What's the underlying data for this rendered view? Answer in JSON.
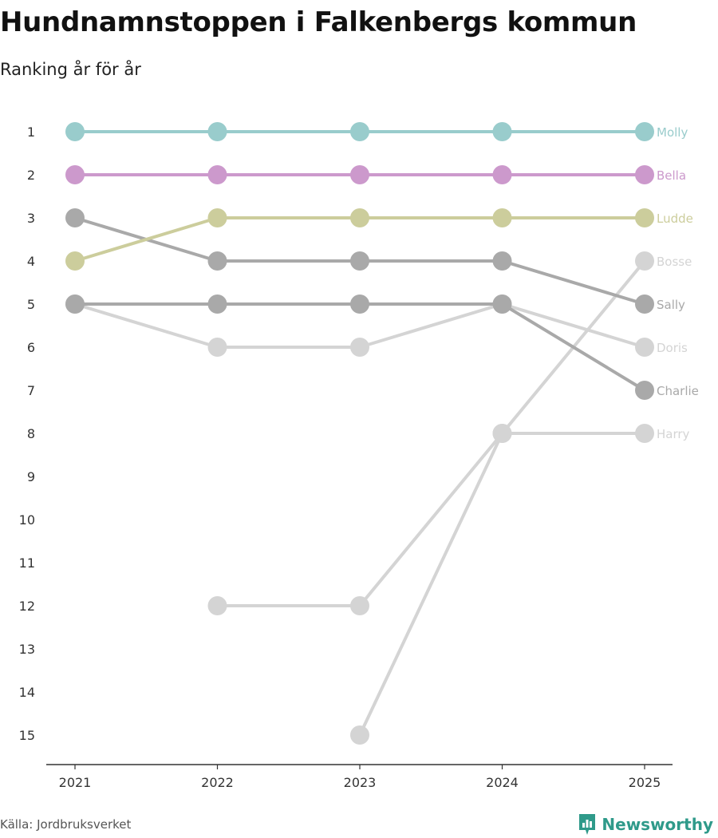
{
  "header": {
    "title": "Hundnamnstoppen i Falkenbergs kommun",
    "subtitle": "Ranking år för år"
  },
  "footer": {
    "source": "Källa: Jordbruksverket",
    "brand": "Newsworthy"
  },
  "chart_data": {
    "type": "line",
    "title": "Hundnamnstoppen i Falkenbergs kommun",
    "subtitle": "Ranking år för år",
    "x": [
      "2021",
      "2022",
      "2023",
      "2024",
      "2025"
    ],
    "y_ticks": [
      "1",
      "2",
      "3",
      "4",
      "5",
      "6",
      "7",
      "8",
      "9",
      "10",
      "11",
      "12",
      "13",
      "14",
      "15"
    ],
    "ylim": [
      1,
      15
    ],
    "y_reversed": true,
    "xlabel": "",
    "ylabel": "",
    "series": [
      {
        "name": "Harry",
        "color": "#d4d4d4",
        "values": [
          null,
          12,
          12,
          8,
          8
        ]
      },
      {
        "name": "Doris",
        "color": "#d4d4d4",
        "values": [
          5,
          6,
          6,
          5,
          6
        ]
      },
      {
        "name": "Bosse",
        "color": "#d4d4d4",
        "values": [
          null,
          null,
          15,
          8,
          4
        ]
      },
      {
        "name": "Charlie",
        "color": "#a9a9a9",
        "values": [
          5,
          5,
          5,
          5,
          7
        ]
      },
      {
        "name": "Sally",
        "color": "#a9a9a9",
        "values": [
          3,
          4,
          4,
          4,
          5
        ]
      },
      {
        "name": "Ludde",
        "color": "#cccd9c",
        "values": [
          4,
          3,
          3,
          3,
          3
        ]
      },
      {
        "name": "Bella",
        "color": "#cc99cc",
        "values": [
          2,
          2,
          2,
          2,
          2
        ]
      },
      {
        "name": "Molly",
        "color": "#99cccc",
        "values": [
          1,
          1,
          1,
          1,
          1
        ]
      }
    ]
  }
}
